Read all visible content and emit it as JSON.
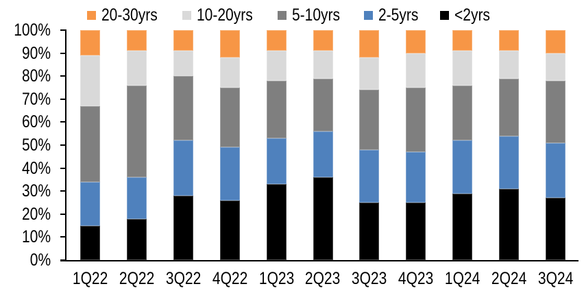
{
  "chart_data": {
    "type": "bar",
    "subtype": "stacked-100-percent",
    "title": "",
    "xlabel": "",
    "ylabel": "",
    "categories": [
      "1Q22",
      "2Q22",
      "3Q22",
      "4Q22",
      "1Q23",
      "2Q23",
      "3Q23",
      "4Q23",
      "1Q24",
      "2Q24",
      "3Q24"
    ],
    "series": [
      {
        "name": "<2yrs",
        "color": "#000000",
        "values": [
          15,
          18,
          28,
          26,
          33,
          36,
          25,
          25,
          29,
          31,
          27
        ]
      },
      {
        "name": "2-5yrs",
        "color": "#4F81BD",
        "values": [
          19,
          18,
          24,
          23,
          20,
          20,
          23,
          22,
          23,
          23,
          24
        ]
      },
      {
        "name": "5-10yrs",
        "color": "#7F7F7F",
        "values": [
          33,
          40,
          28,
          26,
          25,
          23,
          26,
          28,
          24,
          25,
          27
        ]
      },
      {
        "name": "10-20yrs",
        "color": "#D9D9D9",
        "values": [
          22,
          15,
          11,
          13,
          13,
          12,
          14,
          15,
          15,
          12,
          12
        ]
      },
      {
        "name": "20-30yrs",
        "color": "#F79646",
        "values": [
          11,
          9,
          9,
          12,
          9,
          9,
          12,
          10,
          9,
          9,
          10
        ]
      }
    ],
    "legend_order": [
      "20-30yrs",
      "10-20yrs",
      "5-10yrs",
      "2-5yrs",
      "<2yrs"
    ],
    "legend_position": "top",
    "y_ticks": [
      "0%",
      "10%",
      "20%",
      "30%",
      "40%",
      "50%",
      "60%",
      "70%",
      "80%",
      "90%",
      "100%"
    ],
    "ylim": [
      0,
      100
    ],
    "grid": false,
    "axis_color": "#000000",
    "background_color": "#FFFFFF"
  }
}
